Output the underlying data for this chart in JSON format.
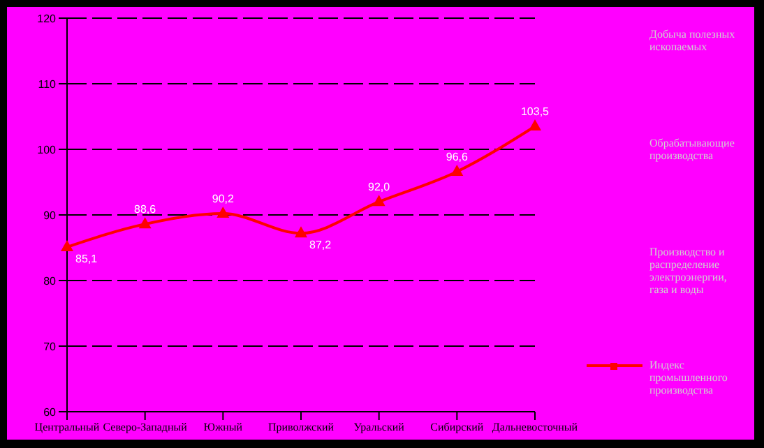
{
  "chart_data": {
    "type": "line",
    "categories": [
      "Центральный",
      "Северо-Западный",
      "Южный",
      "Приволжский",
      "Уральский",
      "Сибирский",
      "Дальневосточный"
    ],
    "series": [
      {
        "name": "Индекс промышленного производства",
        "color": "#ff0000",
        "values": [
          85.1,
          88.6,
          90.2,
          87.2,
          92.0,
          96.6,
          103.5
        ],
        "value_labels": [
          "85,1",
          "88,6",
          "90,2",
          "87,2",
          "92,0",
          "96,6",
          "103,5"
        ]
      }
    ],
    "ylim": [
      60,
      120
    ],
    "yticks": [
      60,
      70,
      80,
      90,
      100,
      110,
      120
    ],
    "grid": "y",
    "legend": "right",
    "marker": "triangle",
    "line_style": "solid",
    "annotations": [
      "Добыча полезных ископаемых",
      "Обрабатывающие производства",
      "Производство и распределение электроэнергии, газа и воды"
    ]
  }
}
